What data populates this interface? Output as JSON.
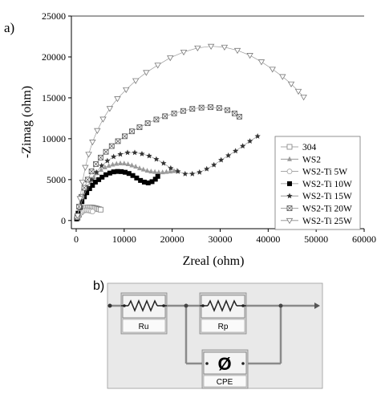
{
  "panel_a_label": "a)",
  "panel_b_label": "b)",
  "chart_data": {
    "type": "scatter",
    "xlabel": "Zreal (ohm)",
    "ylabel": "-Zimag (ohm)",
    "xlim": [
      -1000,
      60000
    ],
    "ylim": [
      -1000,
      25000
    ],
    "xticks": [
      0,
      10000,
      20000,
      30000,
      40000,
      50000,
      60000
    ],
    "yticks": [
      0,
      5000,
      10000,
      15000,
      20000,
      25000
    ],
    "grid": false,
    "legend_placement": "right",
    "series": [
      {
        "name": "304",
        "marker": "square-open",
        "color": "#808080",
        "x": [
          300,
          600,
          900,
          1200,
          1500,
          1800,
          2100,
          2400,
          2700,
          3000,
          3300,
          3600,
          3900,
          4200,
          4500,
          4800,
          5100
        ],
        "y": [
          300,
          700,
          1000,
          1200,
          1400,
          1500,
          1550,
          1580,
          1600,
          1600,
          1590,
          1560,
          1520,
          1480,
          1430,
          1380,
          1330
        ]
      },
      {
        "name": "WS2",
        "marker": "triangle-up",
        "color": "#9a9a9a",
        "x": [
          200,
          700,
          1200,
          1800,
          2400,
          3000,
          3700,
          4400,
          5200,
          6000,
          6800,
          7600,
          8400,
          9200,
          10000,
          10800,
          11600,
          12400,
          13200,
          14000,
          14800,
          15600,
          16400,
          17200,
          18000,
          18800,
          19600,
          20400,
          21000
        ],
        "y": [
          300,
          1400,
          2400,
          3300,
          4100,
          4800,
          5300,
          5800,
          6200,
          6500,
          6700,
          6850,
          6950,
          7000,
          6980,
          6900,
          6750,
          6600,
          6400,
          6250,
          6100,
          6000,
          5950,
          5900,
          5900,
          5950,
          6000,
          6050,
          6100
        ]
      },
      {
        "name": "WS2-Ti 5W",
        "marker": "circle-open",
        "color": "#a0a0a0",
        "x": [
          100,
          400,
          700,
          1000,
          1300,
          1600,
          1900,
          2200,
          2500,
          2800,
          3100,
          3400
        ],
        "y": [
          200,
          500,
          750,
          950,
          1100,
          1200,
          1250,
          1260,
          1240,
          1200,
          1150,
          1100
        ]
      },
      {
        "name": "WS2-Ti 10W",
        "marker": "square-filled",
        "color": "#000000",
        "x": [
          100,
          400,
          800,
          1200,
          1700,
          2200,
          2800,
          3400,
          4000,
          4700,
          5400,
          6200,
          7000,
          7800,
          8600,
          9400,
          10200,
          11000,
          11800,
          12600,
          13400,
          14200,
          15000,
          15800,
          16500,
          17000
        ],
        "y": [
          200,
          900,
          1600,
          2300,
          2900,
          3400,
          3900,
          4300,
          4700,
          5000,
          5300,
          5600,
          5800,
          5950,
          6000,
          5980,
          5900,
          5750,
          5500,
          5200,
          4900,
          4700,
          4600,
          4750,
          5050,
          5400
        ]
      },
      {
        "name": "WS2-Ti 15W",
        "marker": "star",
        "color": "#333333",
        "x": [
          200,
          800,
          1500,
          2300,
          3200,
          4200,
          5300,
          6500,
          7800,
          9200,
          10700,
          12200,
          13700,
          15200,
          16700,
          18200,
          19700,
          21200,
          22700,
          24200,
          25700,
          27200,
          28700,
          30200,
          31700,
          33200,
          34700,
          36200,
          37800
        ],
        "y": [
          400,
          1700,
          2900,
          4000,
          5000,
          5900,
          6700,
          7300,
          7800,
          8100,
          8300,
          8300,
          8150,
          7900,
          7500,
          7000,
          6400,
          6000,
          5700,
          5700,
          5900,
          6300,
          6800,
          7400,
          7950,
          8500,
          9100,
          9700,
          10300
        ]
      },
      {
        "name": "WS2-Ti 20W",
        "marker": "square-x",
        "color": "#555555",
        "x": [
          200,
          600,
          1100,
          1700,
          2400,
          3200,
          4100,
          5100,
          6200,
          7400,
          8700,
          10100,
          11600,
          13200,
          14900,
          16700,
          18500,
          20400,
          22300,
          24200,
          26100,
          28000,
          29800,
          31500,
          33000,
          34000
        ],
        "y": [
          400,
          1700,
          2900,
          4000,
          5000,
          6000,
          6900,
          7700,
          8400,
          9100,
          9700,
          10300,
          10900,
          11400,
          11900,
          12350,
          12750,
          13100,
          13400,
          13650,
          13800,
          13850,
          13750,
          13500,
          13100,
          12700
        ]
      },
      {
        "name": "WS2-Ti 25W",
        "marker": "triangle-down-open",
        "color": "#7a7a7a",
        "x": [
          300,
          800,
          1300,
          1900,
          2600,
          3400,
          4400,
          5600,
          7000,
          8600,
          10400,
          12400,
          14600,
          17000,
          19600,
          22400,
          25300,
          28100,
          30900,
          33600,
          36200,
          38600,
          40900,
          43000,
          44800,
          46300,
          47400
        ],
        "y": [
          600,
          2700,
          4700,
          6500,
          8100,
          9600,
          11000,
          12400,
          13700,
          14900,
          16000,
          17100,
          18100,
          19000,
          19900,
          20600,
          21100,
          21300,
          21200,
          20800,
          20200,
          19400,
          18500,
          17600,
          16700,
          15800,
          15100
        ]
      }
    ]
  },
  "circuit": {
    "resistor_1_label": "Ru",
    "resistor_2_label": "Rp",
    "cpe_label": "CPE",
    "cpe_symbol": "Ø"
  }
}
